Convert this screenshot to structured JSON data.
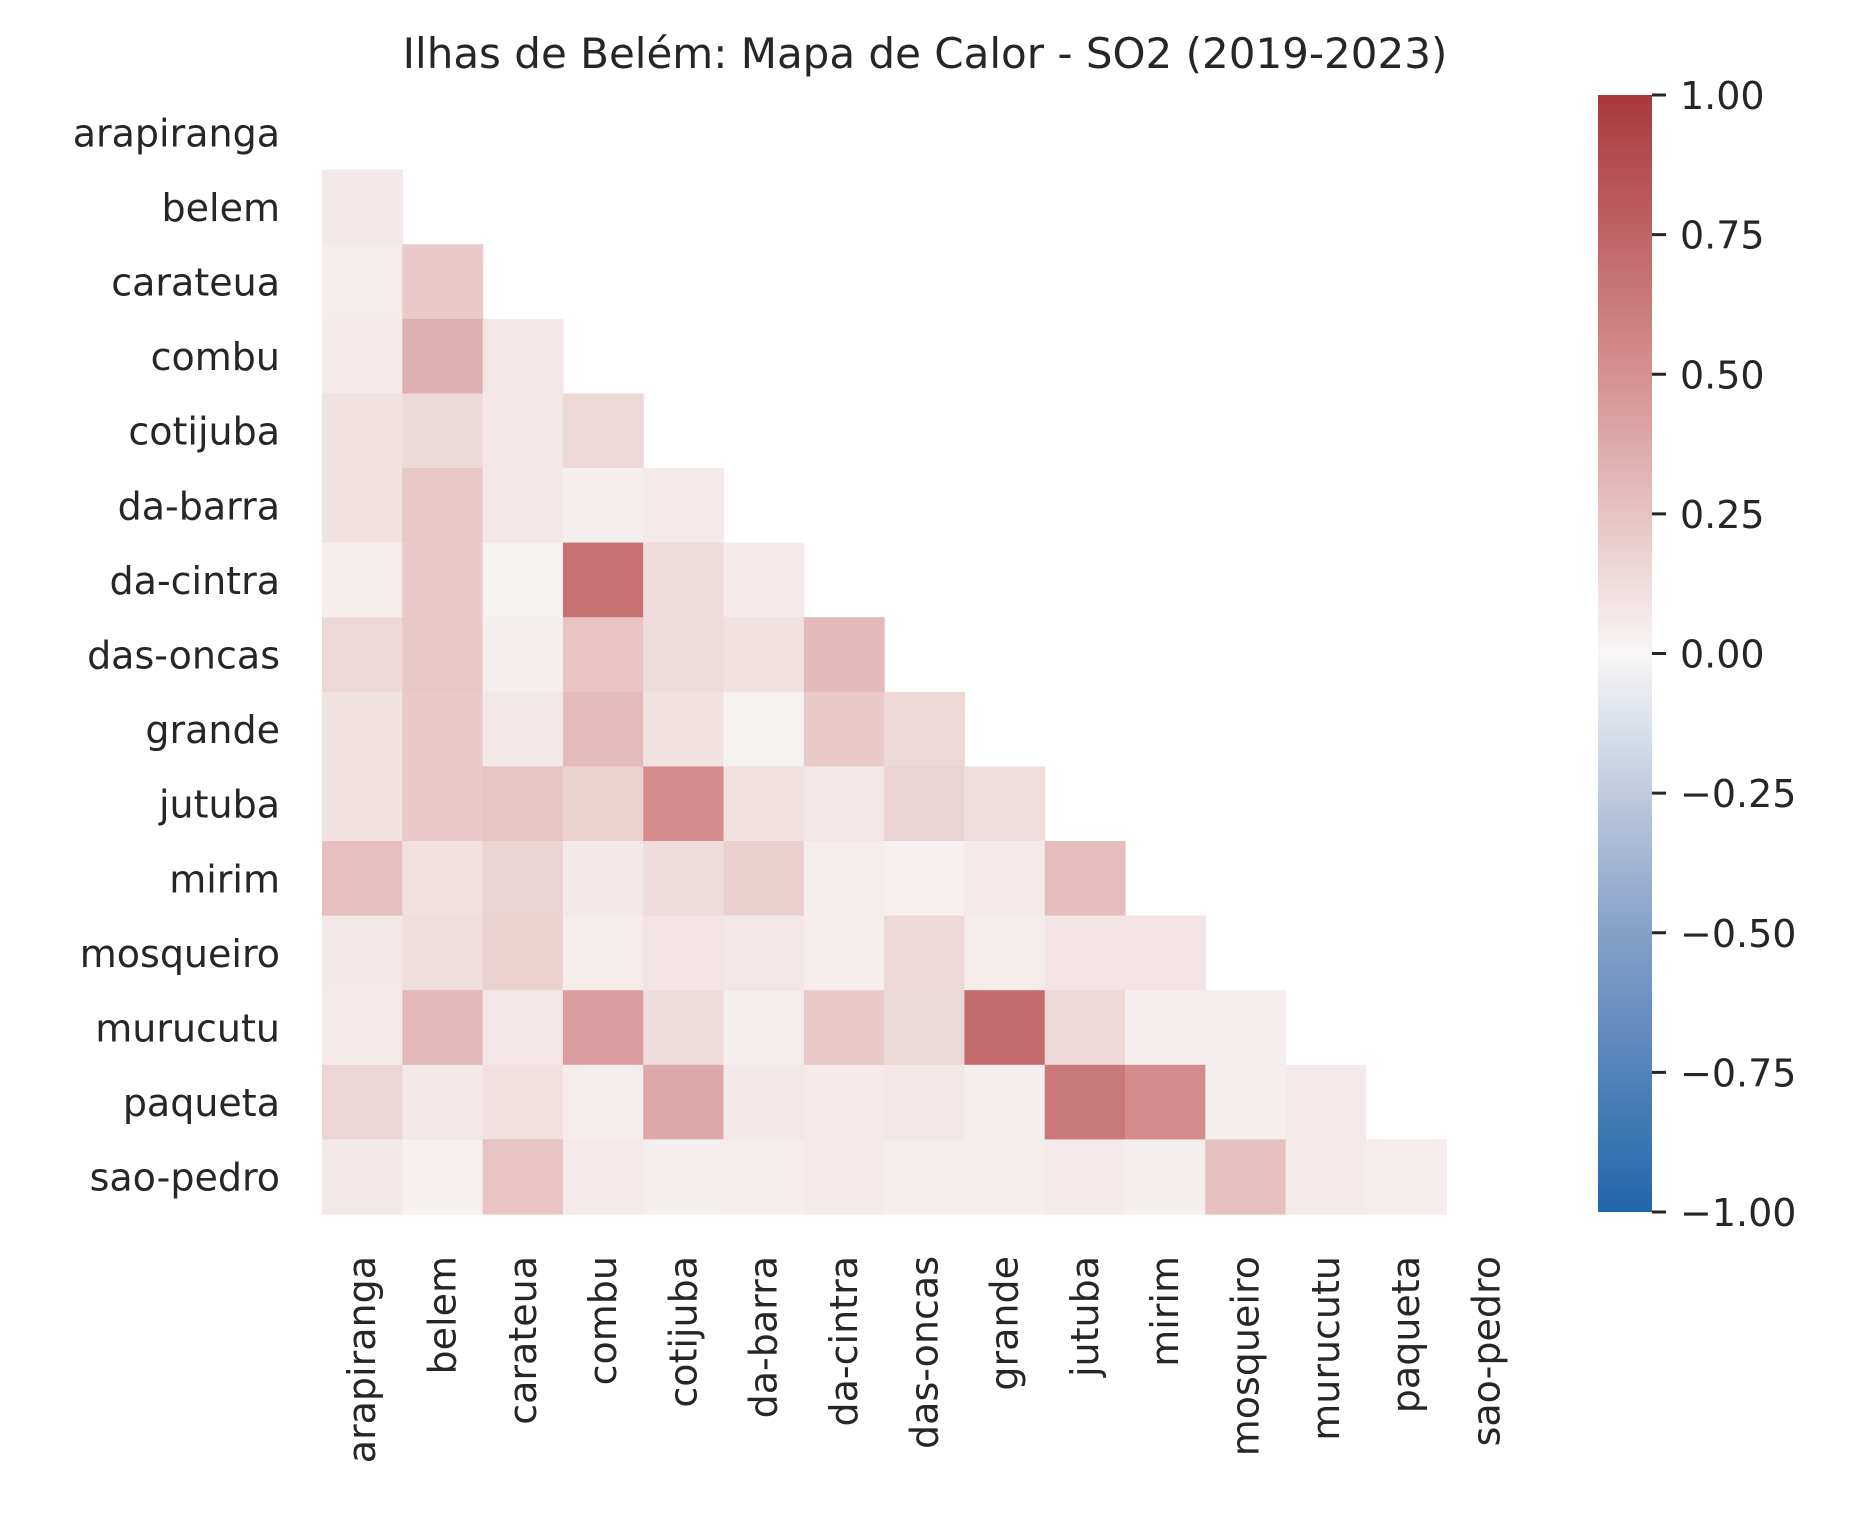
{
  "chart_data": {
    "type": "heatmap",
    "title": "Ilhas de Belém: Mapa de Calor - SO2 (2019-2023)",
    "labels": [
      "arapiranga",
      "belem",
      "carateua",
      "combu",
      "cotijuba",
      "da-barra",
      "da-cintra",
      "das-oncas",
      "grande",
      "jutuba",
      "mirim",
      "mosqueiro",
      "murucutu",
      "paqueta",
      "sao-pedro"
    ],
    "mask": "upper-triangle-and-diagonal",
    "colormap": "vlag (blue-white-red)",
    "vmin": -1.0,
    "vmax": 1.0,
    "colorbar_ticks": [
      "1.00",
      "0.75",
      "0.50",
      "0.25",
      "0.00",
      "−0.25",
      "−0.50",
      "−0.75",
      "−1.00"
    ],
    "colorbar_tick_values": [
      1.0,
      0.75,
      0.5,
      0.25,
      0.0,
      -0.25,
      -0.5,
      -0.75,
      -1.0
    ],
    "rows": [
      [],
      [
        0.07
      ],
      [
        0.05,
        0.22
      ],
      [
        0.06,
        0.35,
        0.08
      ],
      [
        0.1,
        0.14,
        0.08,
        0.15
      ],
      [
        0.1,
        0.23,
        0.08,
        0.04,
        0.06
      ],
      [
        0.05,
        0.22,
        0.02,
        0.68,
        0.13,
        0.06
      ],
      [
        0.15,
        0.23,
        0.04,
        0.25,
        0.13,
        0.1,
        0.3
      ],
      [
        0.1,
        0.22,
        0.07,
        0.29,
        0.1,
        0.02,
        0.22,
        0.15
      ],
      [
        0.1,
        0.22,
        0.24,
        0.18,
        0.52,
        0.11,
        0.08,
        0.17,
        0.12
      ],
      [
        0.27,
        0.11,
        0.17,
        0.07,
        0.13,
        0.19,
        0.05,
        0.03,
        0.06,
        0.28
      ],
      [
        0.07,
        0.12,
        0.18,
        0.05,
        0.09,
        0.08,
        0.05,
        0.15,
        0.05,
        0.09,
        0.09
      ],
      [
        0.06,
        0.3,
        0.08,
        0.43,
        0.13,
        0.04,
        0.22,
        0.14,
        0.71,
        0.15,
        0.04,
        0.04
      ],
      [
        0.16,
        0.07,
        0.11,
        0.05,
        0.38,
        0.07,
        0.06,
        0.08,
        0.04,
        0.63,
        0.52,
        0.04,
        0.06
      ],
      [
        0.07,
        0.03,
        0.25,
        0.06,
        0.04,
        0.05,
        0.06,
        0.05,
        0.05,
        0.06,
        0.04,
        0.27,
        0.06,
        0.05
      ]
    ]
  }
}
